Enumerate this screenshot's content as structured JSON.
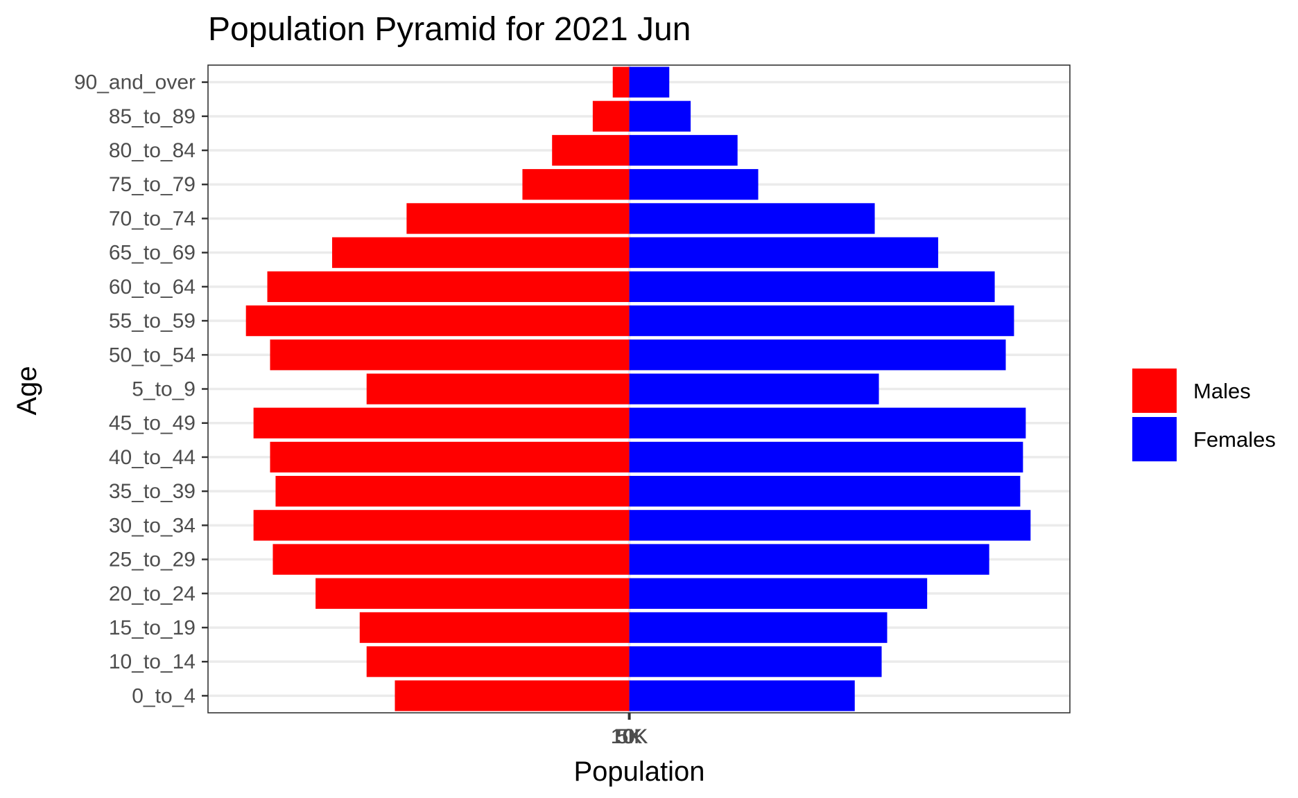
{
  "chart_data": {
    "type": "bar",
    "orientation": "horizontal",
    "subtype": "population-pyramid",
    "title": "Population Pyramid for 2021 Jun",
    "xlabel": "Population",
    "ylabel": "Age",
    "x_tick_labels": [
      "10K",
      "5K",
      "0",
      "5K",
      "10K"
    ],
    "categories": [
      "0_to_4",
      "10_to_14",
      "15_to_19",
      "20_to_24",
      "25_to_29",
      "30_to_34",
      "35_to_39",
      "40_to_44",
      "45_to_49",
      "5_to_9",
      "50_to_54",
      "55_to_59",
      "60_to_64",
      "65_to_69",
      "70_to_74",
      "75_to_79",
      "80_to_84",
      "85_to_89",
      "90_and_over"
    ],
    "series": [
      {
        "name": "Males",
        "color": "#ff0000",
        "values": [
          -340,
          -381,
          -391,
          -455,
          -517,
          -545,
          -513,
          -521,
          -545,
          -381,
          -521,
          -556,
          -525,
          -431,
          -323,
          -155,
          -112,
          -53,
          -24
        ]
      },
      {
        "name": "Females",
        "color": "#0000ff",
        "values": [
          327,
          366,
          374,
          432,
          522,
          582,
          567,
          571,
          575,
          362,
          546,
          558,
          530,
          448,
          356,
          187,
          157,
          89,
          58
        ]
      }
    ],
    "xlim": [
      -611,
      639
    ],
    "grid": true,
    "legend_position": "right"
  }
}
